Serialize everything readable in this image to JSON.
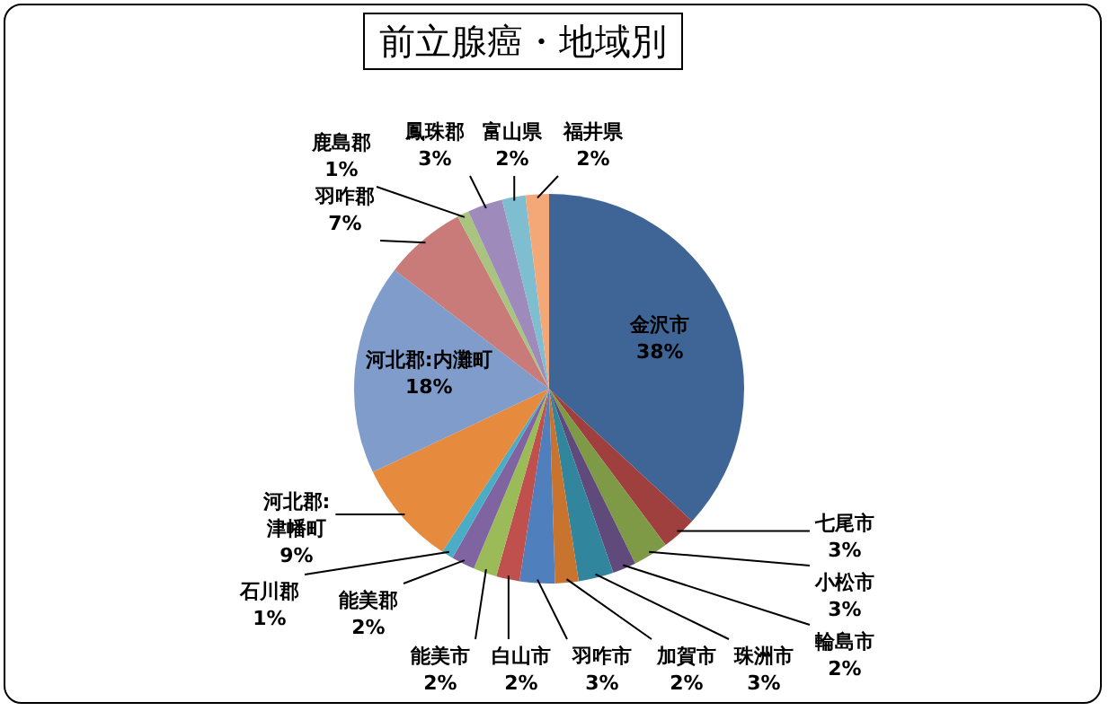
{
  "chart_data": {
    "type": "pie",
    "title": "前立腺癌・地域別",
    "categories": [
      "金沢市",
      "七尾市",
      "小松市",
      "輪島市",
      "珠洲市",
      "加賀市",
      "羽咋市",
      "白山市",
      "能美市",
      "能美郡",
      "石川郡",
      "河北郡:津幡町",
      "河北郡:内灘町",
      "羽咋郡",
      "鹿島郡",
      "鳳珠郡",
      "富山県",
      "福井県"
    ],
    "values": [
      38,
      3,
      3,
      2,
      3,
      2,
      3,
      2,
      2,
      2,
      1,
      9,
      18,
      7,
      1,
      3,
      2,
      2
    ],
    "value_labels": [
      "38%",
      "3%",
      "3%",
      "2%",
      "3%",
      "2%",
      "3%",
      "2%",
      "2%",
      "2%",
      "1%",
      "9%",
      "18%",
      "7%",
      "1%",
      "3%",
      "2%",
      "2%"
    ],
    "colors": [
      "#3f6596",
      "#a0403e",
      "#7e9a46",
      "#604a7b",
      "#31859c",
      "#c8742e",
      "#4f7fbd",
      "#c0504d",
      "#9bbb59",
      "#8064a2",
      "#4bacc6",
      "#e68a3e",
      "#7f9ccb",
      "#c97b7a",
      "#a9c47f",
      "#9e8bbb",
      "#7fbdd0",
      "#f5a877"
    ],
    "legend": false
  }
}
